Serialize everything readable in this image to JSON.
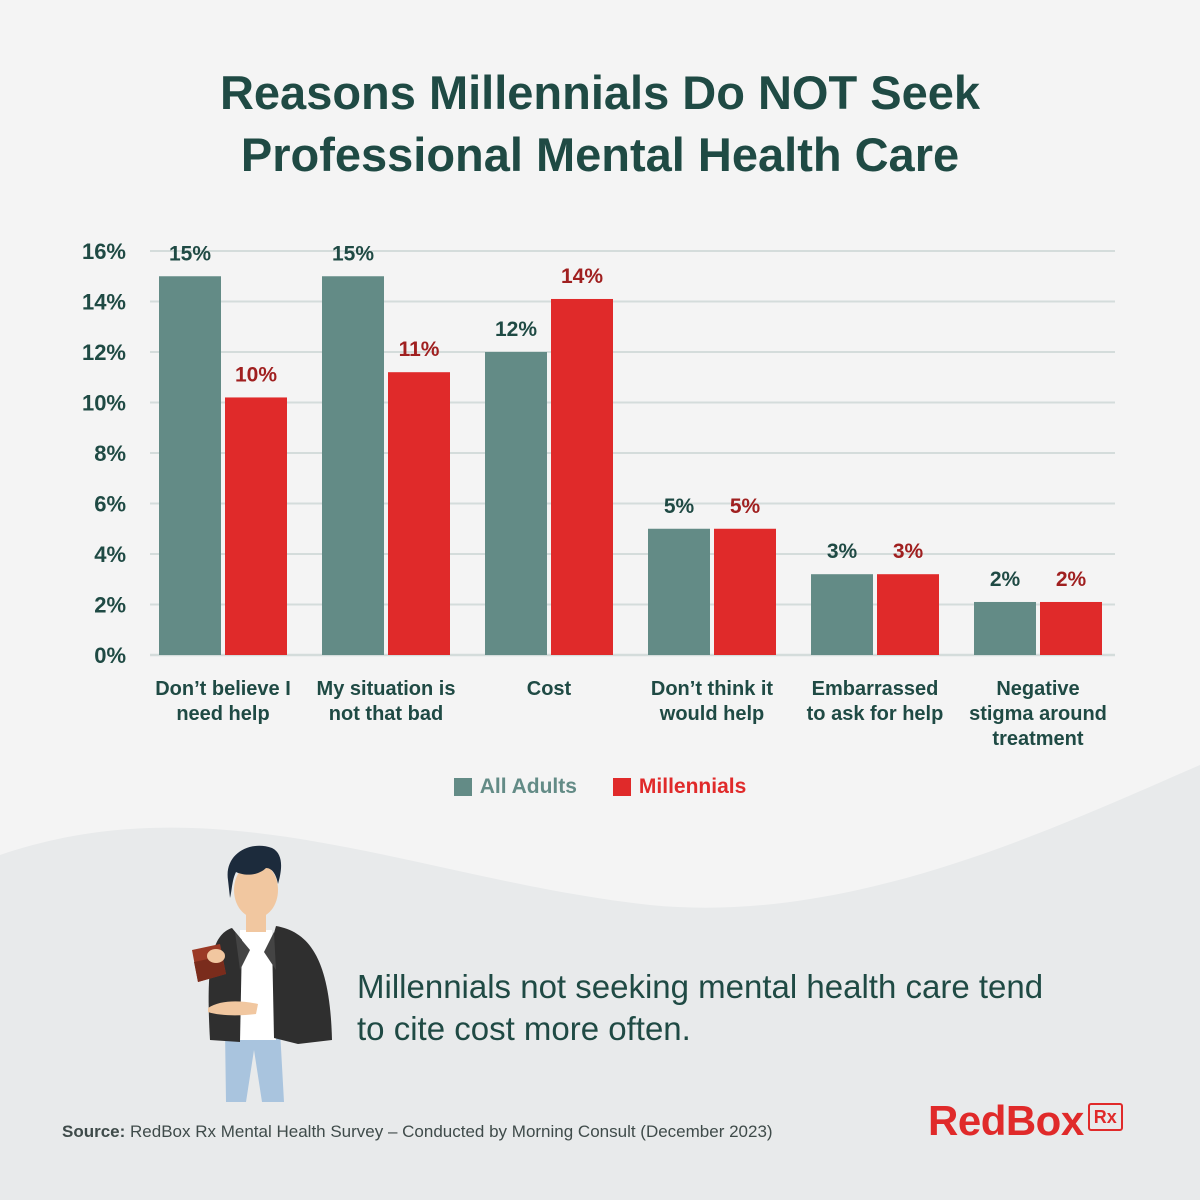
{
  "title_lines": [
    "Reasons Millennials Do NOT Seek",
    "Professional Mental Health Care"
  ],
  "chart_data": {
    "type": "bar",
    "categories": [
      [
        "Don’t believe I",
        "need help"
      ],
      [
        "My situation is",
        "not that bad"
      ],
      [
        "Cost"
      ],
      [
        "Don’t think it",
        "would help"
      ],
      [
        "Embarrassed",
        "to ask for help"
      ],
      [
        "Negative",
        "stigma around",
        "treatment"
      ]
    ],
    "series": [
      {
        "name": "All Adults",
        "color": "#638b86",
        "label_color": "#1f4a44",
        "values": [
          15,
          15,
          12,
          5,
          3.2,
          2.1
        ],
        "labels": [
          "15%",
          "15%",
          "12%",
          "5%",
          "3%",
          "2%"
        ]
      },
      {
        "name": "Millennials",
        "color": "#e02a2a",
        "label_color": "#a02020",
        "values": [
          10.2,
          11.2,
          14.1,
          5,
          3.2,
          2.1
        ],
        "labels": [
          "10%",
          "11%",
          "14%",
          "5%",
          "3%",
          "2%"
        ]
      }
    ],
    "y_ticks": [
      "0%",
      "2%",
      "4%",
      "6%",
      "8%",
      "10%",
      "12%",
      "14%",
      "16%"
    ],
    "ylim": [
      0,
      16
    ],
    "grid": true,
    "legend_position": "bottom-center"
  },
  "legend": {
    "all_adults": "All Adults",
    "millennials": "Millennials"
  },
  "takeaway": "Millennials not seeking mental health care tend to cite cost more often.",
  "source": {
    "label": "Source:",
    "text": "RedBox Rx Mental Health Survey – Conducted by Morning Consult (December 2023)"
  },
  "logo": {
    "text": "RedBox",
    "box": "Rx"
  },
  "colors": {
    "title": "#1f4a44",
    "all_adults": "#638b86",
    "millennials": "#e02a2a",
    "background": "#f4f4f4",
    "wave": "#e8eaeb"
  }
}
